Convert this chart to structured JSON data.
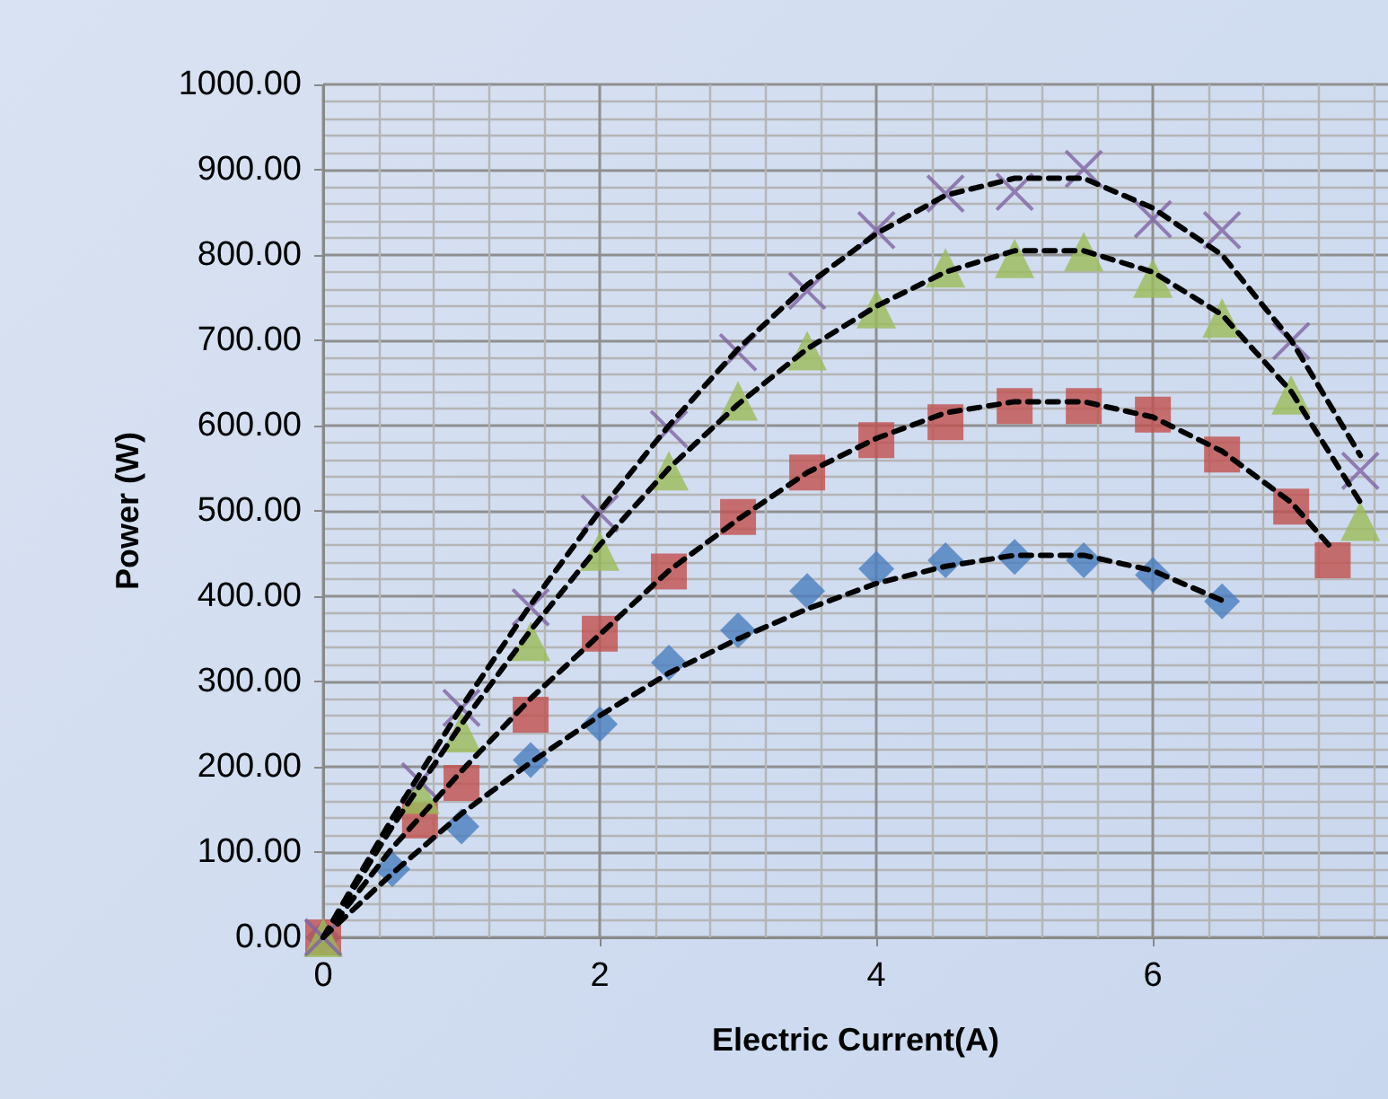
{
  "chart_data": {
    "type": "scatter",
    "xlabel": "Electric Current(A)",
    "ylabel": "Power (W)",
    "xlim": [
      0,
      7.7
    ],
    "xticks": [
      0,
      2,
      4,
      6
    ],
    "ylim": [
      0,
      1000
    ],
    "yticks": [
      {
        "value": 0,
        "label": "0.00"
      },
      {
        "value": 100,
        "label": "100.00"
      },
      {
        "value": 200,
        "label": "200.00"
      },
      {
        "value": 300,
        "label": "300.00"
      },
      {
        "value": 400,
        "label": "400.00"
      },
      {
        "value": 500,
        "label": "500.00"
      },
      {
        "value": 600,
        "label": "600.00"
      },
      {
        "value": 700,
        "label": "700.00"
      },
      {
        "value": 800,
        "label": "800.00"
      },
      {
        "value": 900,
        "label": "900.00"
      },
      {
        "value": 1000,
        "label": "1000.00"
      }
    ],
    "grid": true,
    "series": [
      {
        "type": "line",
        "color": "#000000",
        "marker": "none",
        "line_style": "dashed",
        "x": [
          0,
          0.5,
          1,
          1.5,
          2,
          2.5,
          3,
          3.5,
          4,
          4.5,
          5,
          5.5,
          6,
          6.5
        ],
        "values": [
          0,
          75,
          145,
          205,
          260,
          310,
          350,
          385,
          415,
          435,
          448,
          448,
          430,
          395
        ]
      },
      {
        "type": "line",
        "color": "#000000",
        "marker": "none",
        "line_style": "dashed",
        "x": [
          0,
          0.5,
          1,
          1.5,
          2,
          2.5,
          3,
          3.5,
          4,
          4.5,
          5,
          5.5,
          6,
          6.5,
          7,
          7.3
        ],
        "values": [
          0,
          105,
          195,
          280,
          355,
          430,
          490,
          545,
          585,
          615,
          628,
          628,
          610,
          570,
          510,
          455
        ]
      },
      {
        "type": "line",
        "color": "#000000",
        "marker": "none",
        "line_style": "dashed",
        "x": [
          0,
          0.5,
          1,
          1.5,
          2,
          2.5,
          3,
          3.5,
          4,
          4.5,
          5,
          5.5,
          6,
          6.5,
          7,
          7.5
        ],
        "values": [
          0,
          130,
          250,
          360,
          460,
          550,
          625,
          690,
          740,
          780,
          805,
          805,
          780,
          730,
          640,
          510
        ]
      },
      {
        "type": "line",
        "color": "#000000",
        "marker": "none",
        "line_style": "dashed",
        "x": [
          0,
          0.5,
          1,
          1.5,
          2,
          2.5,
          3,
          3.5,
          4,
          4.5,
          5,
          5.5,
          6,
          6.5,
          7,
          7.5
        ],
        "values": [
          0,
          140,
          270,
          390,
          500,
          600,
          690,
          765,
          825,
          870,
          890,
          890,
          855,
          800,
          700,
          565
        ]
      },
      {
        "color": "#4a7ebf",
        "marker": "diamond",
        "x": [
          0,
          0.5,
          1,
          1.5,
          2,
          2.5,
          3,
          3.5,
          4,
          4.5,
          5,
          5.5,
          6,
          6.5
        ],
        "values": [
          0,
          80,
          130,
          208,
          250,
          322,
          360,
          406,
          432,
          442,
          446,
          442,
          425,
          394
        ]
      },
      {
        "color": "#c0504d",
        "marker": "square",
        "x": [
          0,
          0.7,
          1,
          1.5,
          2,
          2.5,
          3,
          3.5,
          4,
          4.5,
          5,
          5.5,
          6,
          6.5,
          7,
          7.3
        ],
        "values": [
          0,
          137,
          181,
          261,
          356,
          429,
          493,
          545,
          583,
          604,
          623,
          623,
          613,
          566,
          505,
          442
        ]
      },
      {
        "color": "#9bbb59",
        "marker": "triangle",
        "x": [
          0,
          0.7,
          1,
          1.5,
          2,
          2.5,
          3,
          3.5,
          4,
          4.5,
          5,
          5.5,
          6,
          6.5,
          7,
          7.5
        ],
        "values": [
          0,
          168,
          240,
          347,
          453,
          547,
          629,
          688,
          737,
          785,
          796,
          804,
          773,
          726,
          636,
          488
        ]
      },
      {
        "color": "#8064a2",
        "marker": "cross",
        "x": [
          0,
          0.7,
          1,
          1.5,
          2,
          2.5,
          3,
          3.5,
          4,
          4.5,
          5,
          5.5,
          6,
          6.5,
          7,
          7.5
        ],
        "values": [
          0,
          183,
          269,
          387,
          497,
          596,
          686,
          758,
          829,
          872,
          874,
          901,
          842,
          829,
          699,
          547
        ]
      }
    ]
  }
}
